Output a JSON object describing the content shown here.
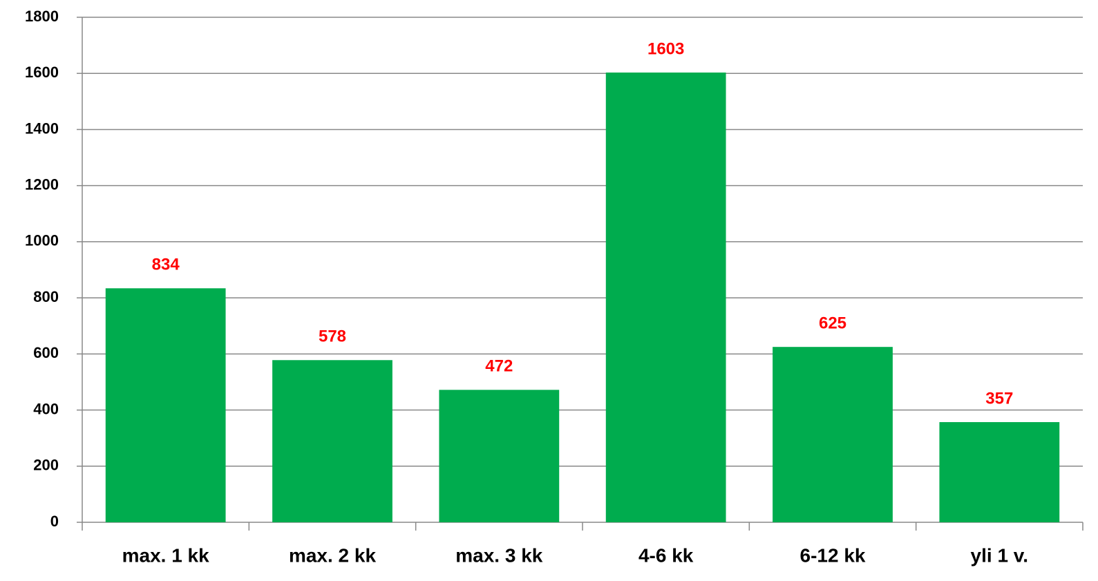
{
  "chart_data": {
    "type": "bar",
    "categories": [
      "max. 1 kk",
      "max. 2 kk",
      "max. 3 kk",
      "4-6 kk",
      "6-12 kk",
      "yli 1 v."
    ],
    "values": [
      834,
      578,
      472,
      1603,
      625,
      357
    ],
    "color": "#00ac4e",
    "value_label_color": "#ff0000",
    "ylim": [
      0,
      1800
    ],
    "yticks": [
      0,
      200,
      400,
      600,
      800,
      1000,
      1200,
      1400,
      1600,
      1800
    ],
    "grid": true
  }
}
